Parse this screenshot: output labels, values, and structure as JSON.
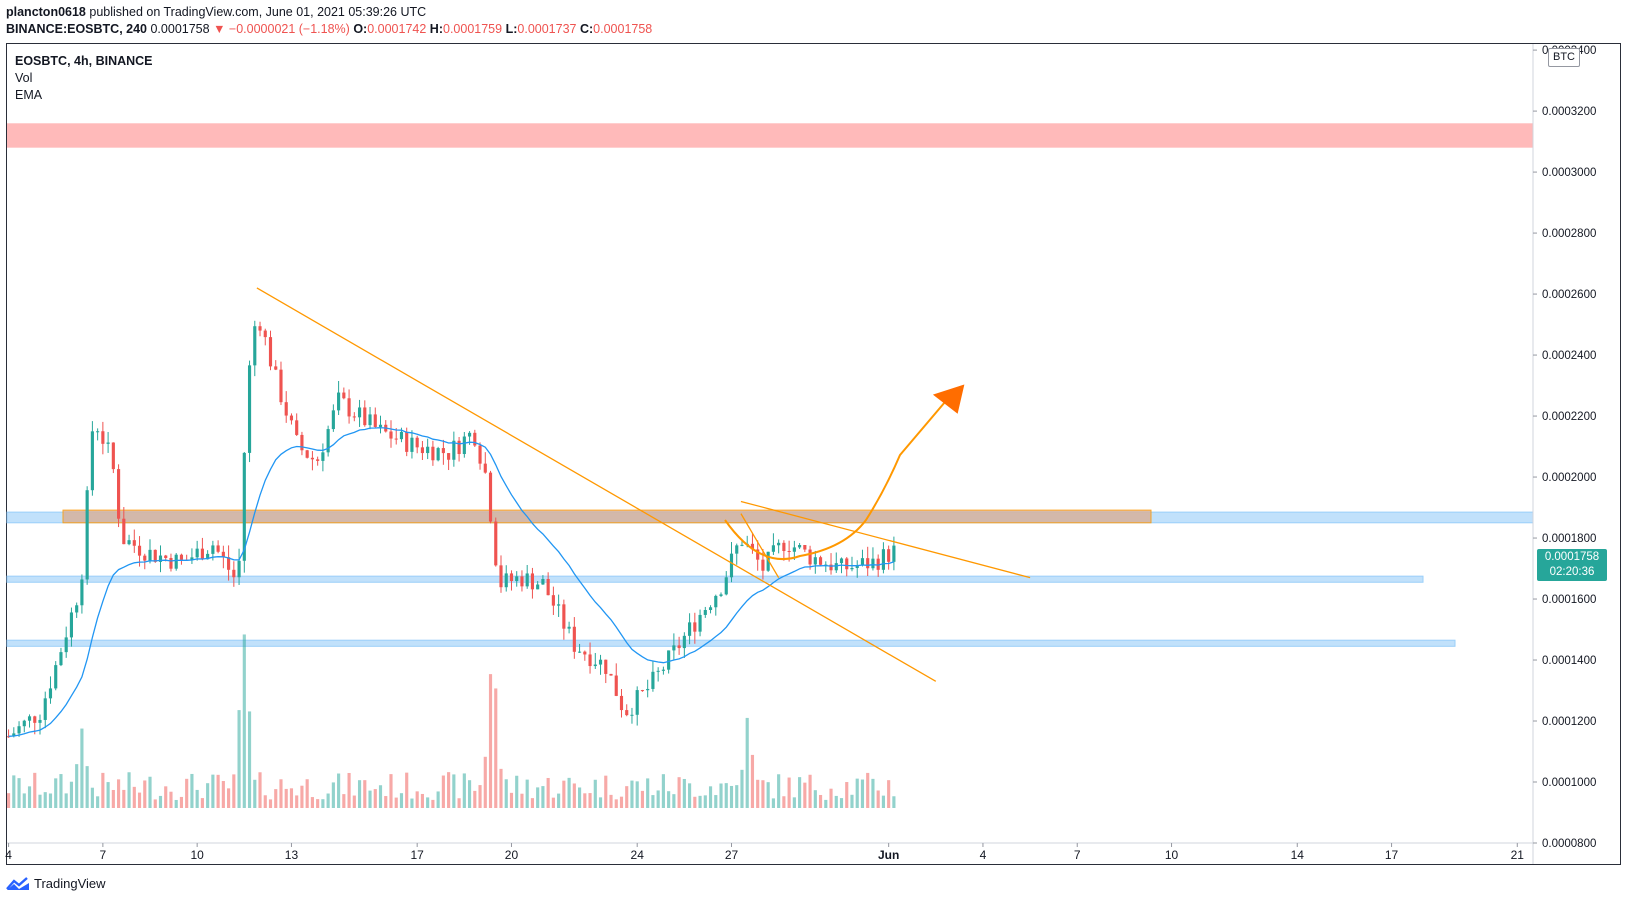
{
  "header": {
    "author": "plancton0618",
    "published_text": "published on TradingView.com, June 01, 2021 05:39:26 UTC",
    "symbol_line": "BINANCE:EOSBTC, 240",
    "last_price": "0.0001758",
    "change": "▼ −0.0000021 (−1.18%)",
    "o_label": "O:",
    "o_value": "0.0001742",
    "h_label": "H:",
    "h_value": "0.0001759",
    "l_label": "L:",
    "l_value": "0.0001737",
    "c_label": "C:",
    "c_value": "0.0001758"
  },
  "legend": {
    "title": "EOSBTC, 4h, BINANCE",
    "vol": "Vol",
    "ema": "EMA"
  },
  "currency": "BTC",
  "price_tag": {
    "price": "0.0001758",
    "countdown": "02:20:36"
  },
  "footer": {
    "brand": "TradingView"
  },
  "colors": {
    "up": "#26a69a",
    "down": "#ef5350",
    "ema": "#2196f3",
    "trendline": "#ff9800",
    "resistance_zone": "#ffb3b3",
    "support_zone": "#bbdefb",
    "brown_zone": "#d7b29d",
    "arrow": "#ff6d00"
  },
  "chart_data": {
    "type": "candlestick",
    "symbol": "EOSBTC",
    "interval": "4h",
    "exchange": "BINANCE",
    "y_axis": {
      "ticks": [
        "0.0003400",
        "0.0003200",
        "0.0003000",
        "0.0002800",
        "0.0002600",
        "0.0002400",
        "0.0002200",
        "0.0002000",
        "0.0001800",
        "0.0001600",
        "0.0001400",
        "0.0001200",
        "0.0001000",
        "0.0000800"
      ],
      "range": [
        8e-05,
        0.000342
      ]
    },
    "x_axis": {
      "ticks": [
        "4",
        "7",
        "10",
        "13",
        "17",
        "20",
        "24",
        "27",
        "Jun",
        "4",
        "7",
        "10",
        "14",
        "17",
        "21"
      ],
      "ticks_value": [
        4,
        7,
        10,
        13,
        17,
        20,
        24,
        27,
        32,
        35,
        38,
        41,
        45,
        48,
        52
      ],
      "range_days": [
        3.95,
        52.5
      ],
      "unit": "day of May 2021 (32 = Jun 1)"
    },
    "ohlc_close_path": [
      {
        "day": 4.0,
        "close": 0.000115
      },
      {
        "day": 5.0,
        "close": 0.000123
      },
      {
        "day": 5.5,
        "close": 0.000138
      },
      {
        "day": 6.3,
        "close": 0.000165
      },
      {
        "day": 6.7,
        "close": 0.00022
      },
      {
        "day": 7.3,
        "close": 0.000205
      },
      {
        "day": 7.6,
        "close": 0.00018
      },
      {
        "day": 8.5,
        "close": 0.000175
      },
      {
        "day": 9.5,
        "close": 0.000172
      },
      {
        "day": 10.5,
        "close": 0.000178
      },
      {
        "day": 11.3,
        "close": 0.000165
      },
      {
        "day": 11.6,
        "close": 0.00023
      },
      {
        "day": 11.9,
        "close": 0.000255
      },
      {
        "day": 12.5,
        "close": 0.000232
      },
      {
        "day": 13.2,
        "close": 0.00021
      },
      {
        "day": 13.8,
        "close": 0.000205
      },
      {
        "day": 14.5,
        "close": 0.000225
      },
      {
        "day": 15.8,
        "close": 0.000215
      },
      {
        "day": 17.0,
        "close": 0.00021
      },
      {
        "day": 18.0,
        "close": 0.000208
      },
      {
        "day": 18.8,
        "close": 0.000215
      },
      {
        "day": 19.2,
        "close": 0.0002
      },
      {
        "day": 19.6,
        "close": 0.000165
      },
      {
        "day": 20.3,
        "close": 0.000167
      },
      {
        "day": 21.0,
        "close": 0.000165
      },
      {
        "day": 22.0,
        "close": 0.000145
      },
      {
        "day": 23.0,
        "close": 0.000138
      },
      {
        "day": 23.6,
        "close": 0.000123
      },
      {
        "day": 24.3,
        "close": 0.00013
      },
      {
        "day": 25.0,
        "close": 0.00014
      },
      {
        "day": 26.0,
        "close": 0.000155
      },
      {
        "day": 26.7,
        "close": 0.000165
      },
      {
        "day": 27.3,
        "close": 0.00018
      },
      {
        "day": 28.0,
        "close": 0.00017
      },
      {
        "day": 28.7,
        "close": 0.000179
      },
      {
        "day": 29.5,
        "close": 0.000174
      },
      {
        "day": 30.5,
        "close": 0.00017
      },
      {
        "day": 31.5,
        "close": 0.000172
      },
      {
        "day": 32.2,
        "close": 0.0001758
      }
    ],
    "volume_peaks": [
      {
        "day": 11.5,
        "volume": "high"
      },
      {
        "day": 19.4,
        "volume": "high"
      },
      {
        "day": 6.3,
        "volume": "medium"
      },
      {
        "day": 27.5,
        "volume": "medium"
      }
    ],
    "zones": [
      {
        "name": "resistance",
        "low": 0.000308,
        "high": 0.000316
      },
      {
        "name": "support-upper",
        "low": 0.000185,
        "high": 0.0001885
      },
      {
        "name": "support-mid",
        "low": 0.0001655,
        "high": 0.0001675
      },
      {
        "name": "support-low",
        "low": 0.0001445,
        "high": 0.0001465
      }
    ],
    "lines": [
      {
        "name": "descending-trendline",
        "from": {
          "day": 11.9,
          "price": 0.000262
        },
        "to": {
          "day": 33.5,
          "price": 0.000133
        }
      },
      {
        "name": "wedge-top",
        "from": {
          "day": 27.3,
          "price": 0.000192
        },
        "to": {
          "day": 36.5,
          "price": 0.000167
        }
      },
      {
        "name": "wedge-bottom",
        "from": {
          "day": 27.3,
          "price": 0.000188
        },
        "to": {
          "day": 28.5,
          "price": 0.000167
        }
      }
    ]
  }
}
